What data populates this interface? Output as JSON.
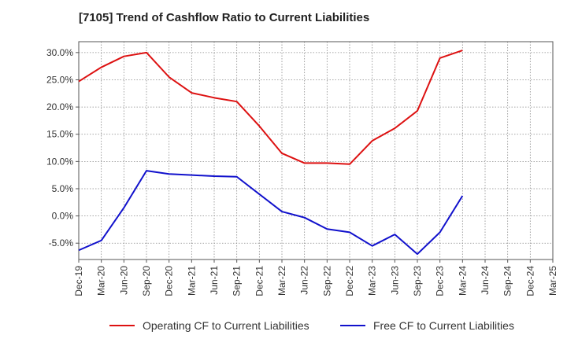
{
  "chart_data": {
    "type": "line",
    "title": "[7105]  Trend of Cashflow Ratio to Current Liabilities",
    "xlabel": "",
    "ylabel": "",
    "categories": [
      "Dec-19",
      "Mar-20",
      "Jun-20",
      "Sep-20",
      "Dec-20",
      "Mar-21",
      "Jun-21",
      "Sep-21",
      "Dec-21",
      "Mar-22",
      "Jun-22",
      "Sep-22",
      "Dec-22",
      "Mar-23",
      "Jun-23",
      "Sep-23",
      "Dec-23",
      "Mar-24",
      "Jun-24",
      "Sep-24",
      "Dec-24",
      "Mar-25"
    ],
    "ylim": [
      -8.0,
      32.0
    ],
    "yticks": [
      -5,
      0,
      5,
      10,
      15,
      20,
      25,
      30
    ],
    "ytick_labels": [
      "-5.0%",
      "0.0%",
      "5.0%",
      "10.0%",
      "15.0%",
      "20.0%",
      "25.0%",
      "30.0%"
    ],
    "grid": true,
    "legend_position": "bottom",
    "series": [
      {
        "name": "Operating CF to Current Liabilities",
        "color": "#dd1111",
        "values": [
          24.7,
          27.3,
          29.3,
          30.0,
          25.5,
          22.6,
          21.7,
          21.0,
          16.5,
          11.5,
          9.7,
          9.7,
          9.5,
          13.8,
          16.1,
          19.3,
          29.0,
          30.4,
          null,
          null,
          null,
          null
        ]
      },
      {
        "name": "Free CF to Current Liabilities",
        "color": "#1111cc",
        "values": [
          -6.3,
          -4.5,
          1.5,
          8.3,
          7.7,
          7.5,
          7.3,
          7.2,
          4.0,
          0.8,
          -0.3,
          -2.4,
          -3.0,
          -5.5,
          -3.4,
          -7.0,
          -3.0,
          3.7,
          null,
          null,
          null,
          null
        ]
      }
    ]
  }
}
